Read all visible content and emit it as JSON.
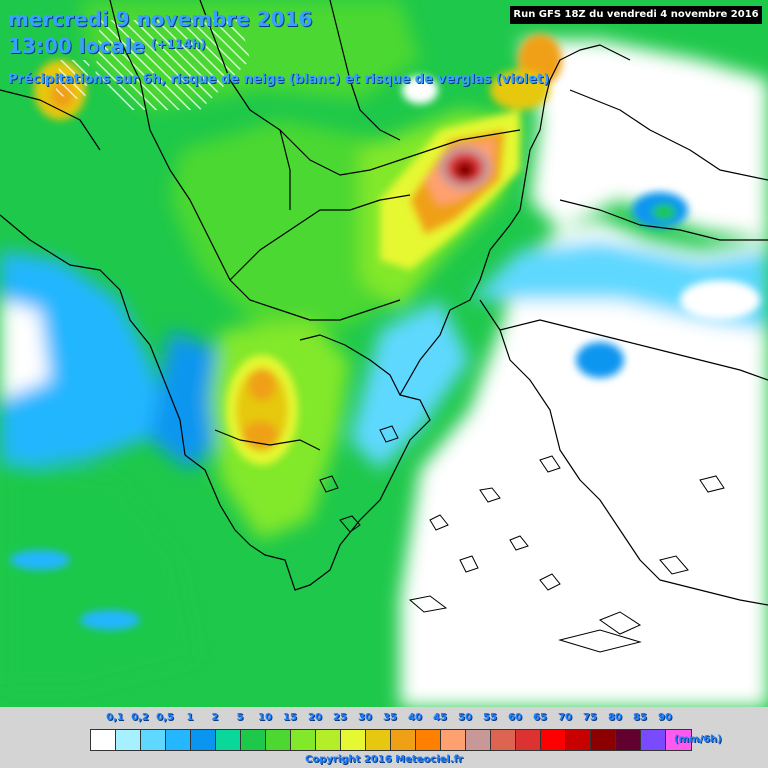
{
  "title": {
    "line1": "mercredi 9 novembre 2016",
    "line2": "13:00 locale",
    "lead": "(+114h)",
    "subtitle": "Précipitations sur 6h, risque de neige (blanc) et risque de verglas (violet)"
  },
  "run_label": "Run GFS 18Z du vendredi 4 novembre 2016",
  "legend": {
    "ticks": [
      "0,1",
      "0,2",
      "0,5",
      "1",
      "2",
      "5",
      "10",
      "15",
      "20",
      "25",
      "30",
      "35",
      "40",
      "45",
      "50",
      "55",
      "60",
      "65",
      "70",
      "75",
      "80",
      "85",
      "90"
    ],
    "colors": [
      "#ffffff",
      "#a6f0ff",
      "#5fd8ff",
      "#24b6ff",
      "#0a96f0",
      "#0ad89a",
      "#1ec84a",
      "#4cd830",
      "#82e82a",
      "#b4ee28",
      "#e6f832",
      "#e6c810",
      "#f0a014",
      "#ff8000",
      "#ffa070",
      "#c89898",
      "#dc6450",
      "#dc3232",
      "#ff0000",
      "#c80000",
      "#8c0000",
      "#620030",
      "#7a4aff",
      "#ff5af0"
    ],
    "unit": "(mm/6h)"
  },
  "copyright": "Copyright 2016 Meteociel.fr",
  "palette": {
    "sea_no_rain": "#ffffff",
    "snow_hatch": "#ffffff",
    "coastlines": "#000000"
  }
}
